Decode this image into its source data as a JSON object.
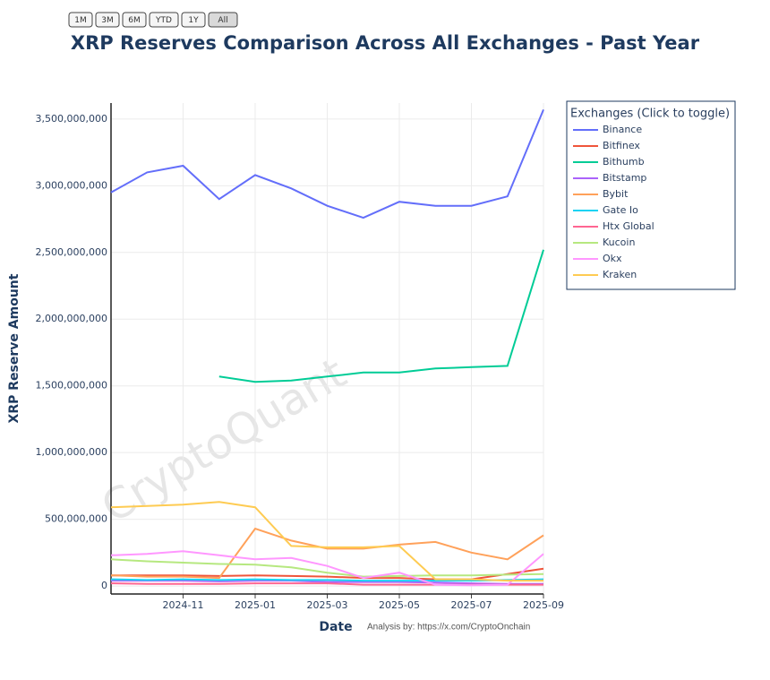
{
  "buttons": [
    "1M",
    "3M",
    "6M",
    "YTD",
    "1Y",
    "All"
  ],
  "chart_data": {
    "type": "line",
    "title": "XRP Reserves Comparison Across All Exchanges - Past Year",
    "xlabel": "Date",
    "ylabel": "XRP Reserve Amount",
    "watermark": "CryptoQuant",
    "annotation": "Analysis by: https://x.com/CryptoOnchain",
    "legend_title": "Exchanges (Click to toggle)",
    "legend": "right",
    "grid": true,
    "x": [
      "2024-09",
      "2024-10",
      "2024-11",
      "2024-12",
      "2025-01",
      "2025-02",
      "2025-03",
      "2025-04",
      "2025-05",
      "2025-06",
      "2025-07",
      "2025-08",
      "2025-09"
    ],
    "xlim": [
      "2024-09",
      "2025-09"
    ],
    "xticks": [
      "2024-11",
      "2025-01",
      "2025-03",
      "2025-05",
      "2025-07",
      "2025-09"
    ],
    "ylim": [
      -60000000,
      3620000000
    ],
    "yticks": [
      {
        "value": 0,
        "label": "0"
      },
      {
        "value": 500000000,
        "label": "500,000,000"
      },
      {
        "value": 1000000000,
        "label": "1,000,000,000"
      },
      {
        "value": 1500000000,
        "label": "1,500,000,000"
      },
      {
        "value": 2000000000,
        "label": "2,000,000,000"
      },
      {
        "value": 2500000000,
        "label": "2,500,000,000"
      },
      {
        "value": 3000000000,
        "label": "3,000,000,000"
      },
      {
        "value": 3500000000,
        "label": "3,500,000,000"
      }
    ],
    "series": [
      {
        "name": "Binance",
        "color": "#636efa",
        "values": [
          2950000000,
          3100000000,
          3150000000,
          2900000000,
          3080000000,
          2980000000,
          2850000000,
          2760000000,
          2880000000,
          2850000000,
          2850000000,
          2920000000,
          3570000000
        ]
      },
      {
        "name": "Bitfinex",
        "color": "#ef553b",
        "values": [
          80000000,
          80000000,
          80000000,
          75000000,
          80000000,
          75000000,
          70000000,
          60000000,
          60000000,
          50000000,
          50000000,
          90000000,
          130000000
        ]
      },
      {
        "name": "Bithumb",
        "color": "#00cc96",
        "values": [
          null,
          null,
          null,
          1570000000,
          1530000000,
          1540000000,
          1570000000,
          1600000000,
          1600000000,
          1630000000,
          1640000000,
          1650000000,
          2520000000
        ]
      },
      {
        "name": "Bitstamp",
        "color": "#ab63fa",
        "values": [
          40000000,
          40000000,
          40000000,
          35000000,
          40000000,
          40000000,
          30000000,
          30000000,
          30000000,
          25000000,
          20000000,
          15000000,
          15000000
        ]
      },
      {
        "name": "Bybit",
        "color": "#ffa15a",
        "values": [
          80000000,
          70000000,
          70000000,
          60000000,
          430000000,
          340000000,
          280000000,
          280000000,
          310000000,
          330000000,
          250000000,
          200000000,
          380000000
        ]
      },
      {
        "name": "Gate Io",
        "color": "#19d3f3",
        "values": [
          50000000,
          45000000,
          50000000,
          45000000,
          50000000,
          45000000,
          45000000,
          40000000,
          40000000,
          40000000,
          40000000,
          45000000,
          50000000
        ]
      },
      {
        "name": "Htx Global",
        "color": "#ff6692",
        "values": [
          20000000,
          15000000,
          15000000,
          15000000,
          20000000,
          20000000,
          20000000,
          10000000,
          10000000,
          10000000,
          10000000,
          10000000,
          10000000
        ]
      },
      {
        "name": "Kucoin",
        "color": "#b6e880",
        "values": [
          200000000,
          185000000,
          175000000,
          165000000,
          160000000,
          140000000,
          100000000,
          70000000,
          75000000,
          80000000,
          80000000,
          85000000,
          90000000
        ]
      },
      {
        "name": "Okx",
        "color": "#ff97ff",
        "values": [
          230000000,
          240000000,
          260000000,
          230000000,
          200000000,
          210000000,
          150000000,
          60000000,
          100000000,
          10000000,
          5000000,
          10000000,
          240000000
        ]
      },
      {
        "name": "Kraken",
        "color": "#fecb52",
        "values": [
          590000000,
          600000000,
          610000000,
          630000000,
          590000000,
          300000000,
          290000000,
          290000000,
          300000000,
          50000000,
          50000000,
          40000000,
          40000000
        ]
      }
    ]
  }
}
